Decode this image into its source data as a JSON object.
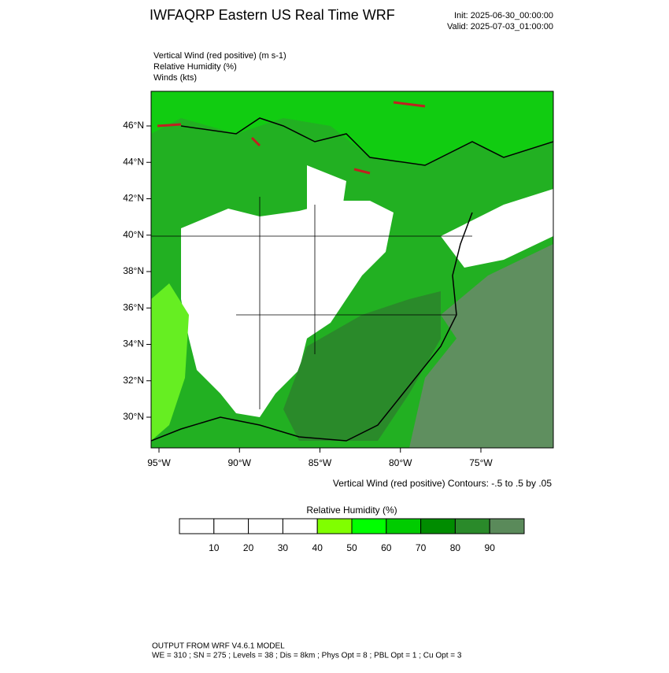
{
  "header": {
    "title": "IWFAQRP Eastern US Real Time WRF",
    "init": "Init: 2025-06-30_00:00:00",
    "valid": "Valid: 2025-07-03_01:00:00"
  },
  "fields": [
    "Vertical Wind (red positive)   (m s-1)",
    "Relative Humidity   (%)",
    "Winds   (kts)"
  ],
  "map": {
    "lat_labels": [
      "46°N",
      "44°N",
      "42°N",
      "40°N",
      "38°N",
      "36°N",
      "34°N",
      "32°N",
      "30°N"
    ],
    "lon_labels": [
      "95°W",
      "90°W",
      "85°W",
      "80°W",
      "75°W"
    ],
    "contour_note": "Vertical Wind (red positive) Contours: -.5 to .5 by .05"
  },
  "colorbar": {
    "title": "Relative Humidity   (%)",
    "labels": [
      10,
      20,
      30,
      40,
      50,
      60,
      70,
      80,
      90
    ],
    "colors": [
      "#ffffff",
      "#ffffff",
      "#ffffff",
      "#ffffff",
      "#80ff00",
      "#00ff00",
      "#00cc00",
      "#008c00",
      "#2a8a2a",
      "#5a8a5a"
    ]
  },
  "footer": {
    "line1": "OUTPUT FROM WRF V4.6.1 MODEL",
    "line2": "WE = 310 ; SN = 275 ; Levels = 38 ; Dis = 8km ; Phys Opt = 8 ; PBL Opt = 1 ; Cu Opt = 3"
  }
}
